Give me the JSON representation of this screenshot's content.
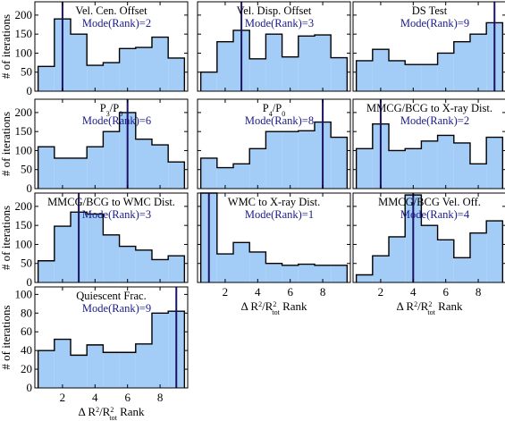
{
  "style": {
    "fill": "#a3cdf7",
    "edge": "#000000",
    "mode_line": "#1b1464",
    "text": "#000000",
    "mode_text": "#1b1a8a"
  },
  "figure": {
    "ylabel": "# of iterations",
    "xlabel_parts": [
      "Δ R",
      "2",
      "/R",
      "2",
      "tot",
      " Rank"
    ],
    "x_ticks": [
      "2",
      "4",
      "6",
      "8"
    ]
  },
  "chart_data": [
    {
      "type": "bar",
      "title": "Vel. Cen. Offset",
      "mode_label": "Mode(Rank)=2",
      "mode": 2,
      "x": [
        1,
        2,
        3,
        4,
        5,
        6,
        7,
        8,
        9
      ],
      "values": [
        65,
        190,
        150,
        68,
        75,
        112,
        115,
        142,
        87
      ],
      "ylim": [
        0,
        235
      ],
      "y_ticks": [
        "0",
        "50",
        "100",
        "150",
        "200"
      ]
    },
    {
      "type": "bar",
      "title": "Vel. Disp. Offset",
      "mode_label": "Mode(Rank)=3",
      "mode": 3,
      "x": [
        1,
        2,
        3,
        4,
        5,
        6,
        7,
        8,
        9
      ],
      "values": [
        50,
        130,
        160,
        85,
        150,
        90,
        145,
        148,
        88
      ],
      "ylim": [
        0,
        235
      ]
    },
    {
      "type": "bar",
      "title": "DS Test",
      "mode_label": "Mode(Rank)=9",
      "mode": 9,
      "x": [
        1,
        2,
        3,
        4,
        5,
        6,
        7,
        8,
        9
      ],
      "values": [
        80,
        110,
        80,
        70,
        70,
        100,
        130,
        150,
        180
      ],
      "ylim": [
        0,
        235
      ]
    },
    {
      "type": "bar",
      "title_parts": [
        "P",
        "3",
        "/P",
        "0"
      ],
      "mode_label": "Mode(Rank)=6",
      "mode": 6,
      "x": [
        1,
        2,
        3,
        4,
        5,
        6,
        7,
        8,
        9
      ],
      "values": [
        110,
        80,
        80,
        110,
        150,
        200,
        130,
        115,
        70
      ],
      "ylim": [
        0,
        235
      ],
      "y_ticks": [
        "0",
        "50",
        "100",
        "150",
        "200"
      ]
    },
    {
      "type": "bar",
      "title_parts": [
        "P",
        "4",
        "/P",
        "0"
      ],
      "mode_label": "Mode(Rank)=8",
      "mode": 8,
      "x": [
        1,
        2,
        3,
        4,
        5,
        6,
        7,
        8,
        9
      ],
      "values": [
        80,
        55,
        65,
        105,
        150,
        150,
        152,
        175,
        135
      ],
      "ylim": [
        0,
        235
      ]
    },
    {
      "type": "bar",
      "title": "MMCG/BCG to X-ray Dist.",
      "mode_label": "Mode(Rank)=2",
      "mode": 2,
      "x": [
        1,
        2,
        3,
        4,
        5,
        6,
        7,
        8,
        9
      ],
      "values": [
        105,
        170,
        100,
        105,
        125,
        140,
        120,
        65,
        135
      ],
      "ylim": [
        0,
        235
      ]
    },
    {
      "type": "bar",
      "title": "MMCG/BCG to WMC Dist.",
      "mode_label": "Mode(Rank)=3",
      "mode": 3,
      "x": [
        1,
        2,
        3,
        4,
        5,
        6,
        7,
        8,
        9
      ],
      "values": [
        57,
        148,
        185,
        180,
        125,
        95,
        85,
        60,
        70
      ],
      "ylim": [
        0,
        235
      ],
      "y_ticks": [
        "0",
        "50",
        "100",
        "150",
        "200"
      ]
    },
    {
      "type": "bar",
      "title": "WMC to X-ray Dist.",
      "mode_label": "Mode(Rank)=1",
      "mode": 1,
      "x": [
        1,
        2,
        3,
        4,
        5,
        6,
        7,
        8,
        9
      ],
      "values": [
        235,
        75,
        105,
        80,
        50,
        45,
        48,
        45,
        45
      ],
      "ylim": [
        0,
        235
      ],
      "x_ticks": [
        "2",
        "4",
        "6",
        "8"
      ],
      "xlabel": true
    },
    {
      "type": "bar",
      "title": "MMCG/BCG Vel. Off.",
      "mode_label": "Mode(Rank)=4",
      "mode": 4,
      "x": [
        1,
        2,
        3,
        4,
        5,
        6,
        7,
        8,
        9
      ],
      "values": [
        20,
        70,
        120,
        230,
        150,
        112,
        65,
        130,
        162
      ],
      "ylim": [
        0,
        235
      ],
      "x_ticks": [
        "2",
        "4",
        "6",
        "8"
      ],
      "xlabel": true
    },
    {
      "type": "bar",
      "title": "Quiescent Frac.",
      "mode_label": "Mode(Rank)=9",
      "mode": 9,
      "x": [
        1,
        2,
        3,
        4,
        5,
        6,
        7,
        8,
        9
      ],
      "values": [
        40,
        52,
        35,
        46,
        38,
        38,
        47,
        80,
        82
      ],
      "ylim": [
        0,
        108
      ],
      "y_ticks": [
        "0",
        "20",
        "40",
        "60",
        "80",
        "100"
      ],
      "x_ticks": [
        "2",
        "4",
        "6",
        "8"
      ],
      "xlabel": true
    }
  ]
}
